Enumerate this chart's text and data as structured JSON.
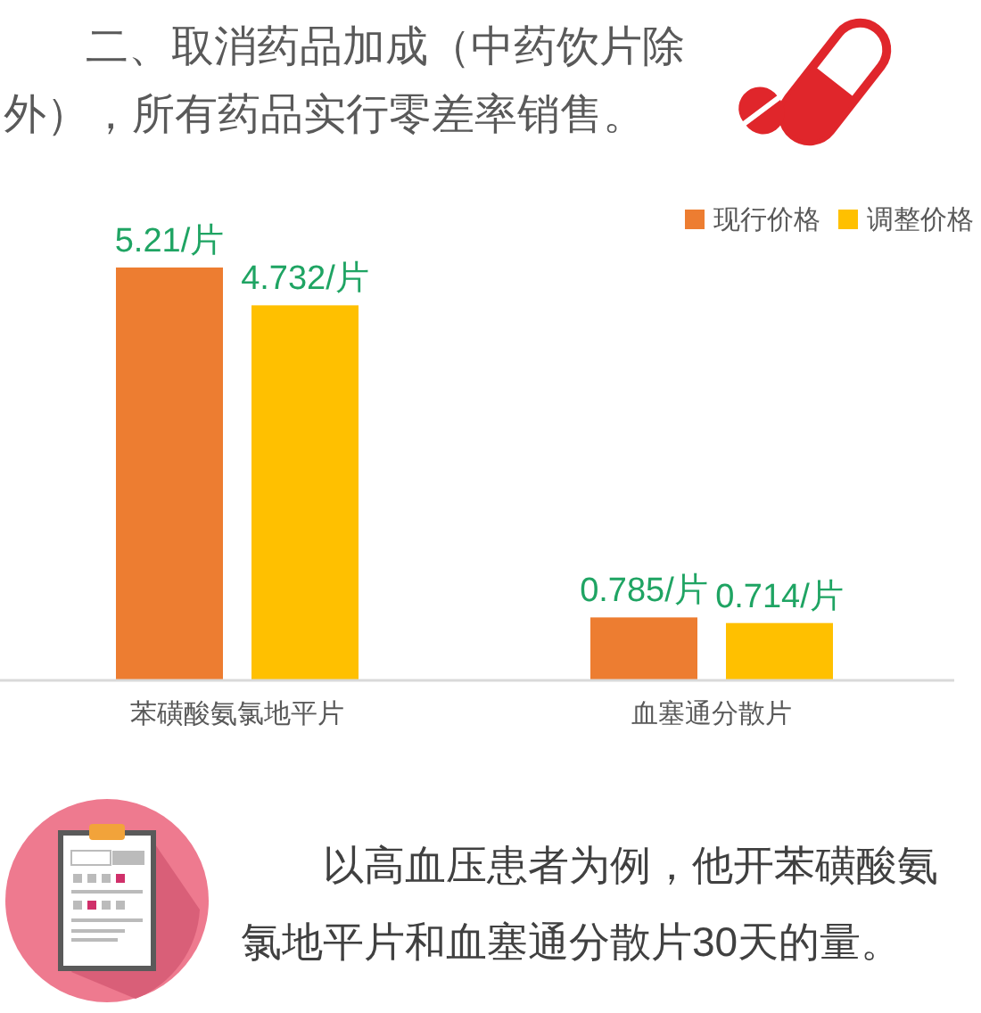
{
  "chart_data": {
    "type": "bar",
    "title": "二、取消药品加成（中药饮片除外），所有药品实行零差率销售。",
    "categories": [
      "苯磺酸氨氯地平片",
      "血塞通分散片"
    ],
    "series": [
      {
        "name": "现行价格",
        "color": "#ED7D31",
        "values": [
          5.21,
          0.785
        ],
        "value_labels": [
          "5.21/片",
          "0.785/片"
        ]
      },
      {
        "name": "调整价格",
        "color": "#FFC000",
        "values": [
          4.732,
          0.714
        ],
        "value_labels": [
          "4.732/片",
          "0.714/片"
        ]
      }
    ],
    "legend": "top right",
    "annotations": [
      "以高血压患者为例，他开苯磺酸氨氯地平片和血塞通分散片30天的量。"
    ]
  }
}
